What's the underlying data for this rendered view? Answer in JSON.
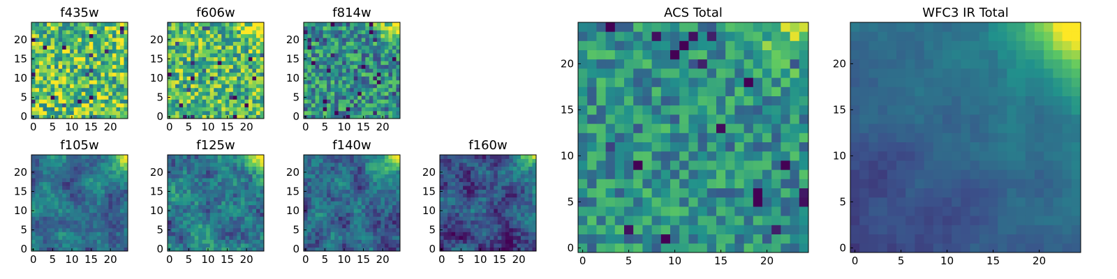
{
  "figure": {
    "colormap": "viridis",
    "colormap_stops": [
      "#440154",
      "#3b528b",
      "#21918c",
      "#5ec962",
      "#fde725"
    ]
  },
  "chart_data": [
    {
      "type": "heatmap",
      "title": "f435w",
      "grid": 25,
      "xlim": [
        0,
        24
      ],
      "ylim": [
        0,
        24
      ],
      "xticks": [
        "0",
        "5",
        "10",
        "15",
        "20"
      ],
      "yticks": [
        "0",
        "5",
        "10",
        "15",
        "20"
      ],
      "pattern": "noisy",
      "noise": 0.33,
      "mean": 0.72,
      "corner_peak": 0.0
    },
    {
      "type": "heatmap",
      "title": "f606w",
      "grid": 25,
      "xlim": [
        0,
        24
      ],
      "ylim": [
        0,
        24
      ],
      "xticks": [
        "0",
        "5",
        "10",
        "15",
        "20"
      ],
      "yticks": [
        "0",
        "5",
        "10",
        "15",
        "20"
      ],
      "pattern": "noisy",
      "noise": 0.3,
      "mean": 0.68,
      "corner_peak": 0.55
    },
    {
      "type": "heatmap",
      "title": "f814w",
      "grid": 25,
      "xlim": [
        0,
        24
      ],
      "ylim": [
        0,
        24
      ],
      "xticks": [
        "0",
        "5",
        "10",
        "15",
        "20"
      ],
      "yticks": [
        "0",
        "5",
        "10",
        "15",
        "20"
      ],
      "pattern": "noisy",
      "noise": 0.28,
      "mean": 0.5,
      "corner_peak": 0.75
    },
    {
      "type": "heatmap",
      "title": "f105w",
      "grid": 25,
      "xlim": [
        0,
        24
      ],
      "ylim": [
        0,
        24
      ],
      "xticks": [
        "0",
        "5",
        "10",
        "15",
        "20"
      ],
      "yticks": [
        "0",
        "5",
        "10",
        "15",
        "20"
      ],
      "pattern": "smooth",
      "noise": 0.1,
      "mean": 0.38,
      "corner_peak": 0.8
    },
    {
      "type": "heatmap",
      "title": "f125w",
      "grid": 25,
      "xlim": [
        0,
        24
      ],
      "ylim": [
        0,
        24
      ],
      "xticks": [
        "0",
        "5",
        "10",
        "15",
        "20"
      ],
      "yticks": [
        "0",
        "5",
        "10",
        "15",
        "20"
      ],
      "pattern": "smooth",
      "noise": 0.14,
      "mean": 0.4,
      "corner_peak": 0.8
    },
    {
      "type": "heatmap",
      "title": "f140w",
      "grid": 25,
      "xlim": [
        0,
        24
      ],
      "ylim": [
        0,
        24
      ],
      "xticks": [
        "0",
        "5",
        "10",
        "15",
        "20"
      ],
      "yticks": [
        "0",
        "5",
        "10",
        "15",
        "20"
      ],
      "pattern": "smooth",
      "noise": 0.12,
      "mean": 0.3,
      "corner_peak": 0.85
    },
    {
      "type": "heatmap",
      "title": "f160w",
      "grid": 25,
      "xlim": [
        0,
        24
      ],
      "ylim": [
        0,
        24
      ],
      "xticks": [
        "0",
        "5",
        "10",
        "15",
        "20"
      ],
      "yticks": [
        "0",
        "5",
        "10",
        "15",
        "20"
      ],
      "pattern": "smooth",
      "noise": 0.12,
      "mean": 0.22,
      "corner_peak": 0.9
    },
    {
      "type": "heatmap",
      "title": "ACS Total",
      "grid": 25,
      "xlim": [
        0,
        24
      ],
      "ylim": [
        0,
        24
      ],
      "xticks": [
        "0",
        "5",
        "10",
        "15",
        "20"
      ],
      "yticks": [
        "0",
        "5",
        "10",
        "15",
        "20"
      ],
      "pattern": "noisy",
      "noise": 0.22,
      "mean": 0.5,
      "corner_peak": 0.55
    },
    {
      "type": "heatmap",
      "title": "WFC3 IR Total",
      "grid": 25,
      "xlim": [
        0,
        24
      ],
      "ylim": [
        0,
        24
      ],
      "xticks": [
        "0",
        "5",
        "10",
        "15",
        "20"
      ],
      "yticks": [
        "0",
        "5",
        "10",
        "15",
        "20"
      ],
      "pattern": "gradient",
      "noise": 0.06,
      "mean": 0.2,
      "corner_peak": 0.9
    }
  ]
}
